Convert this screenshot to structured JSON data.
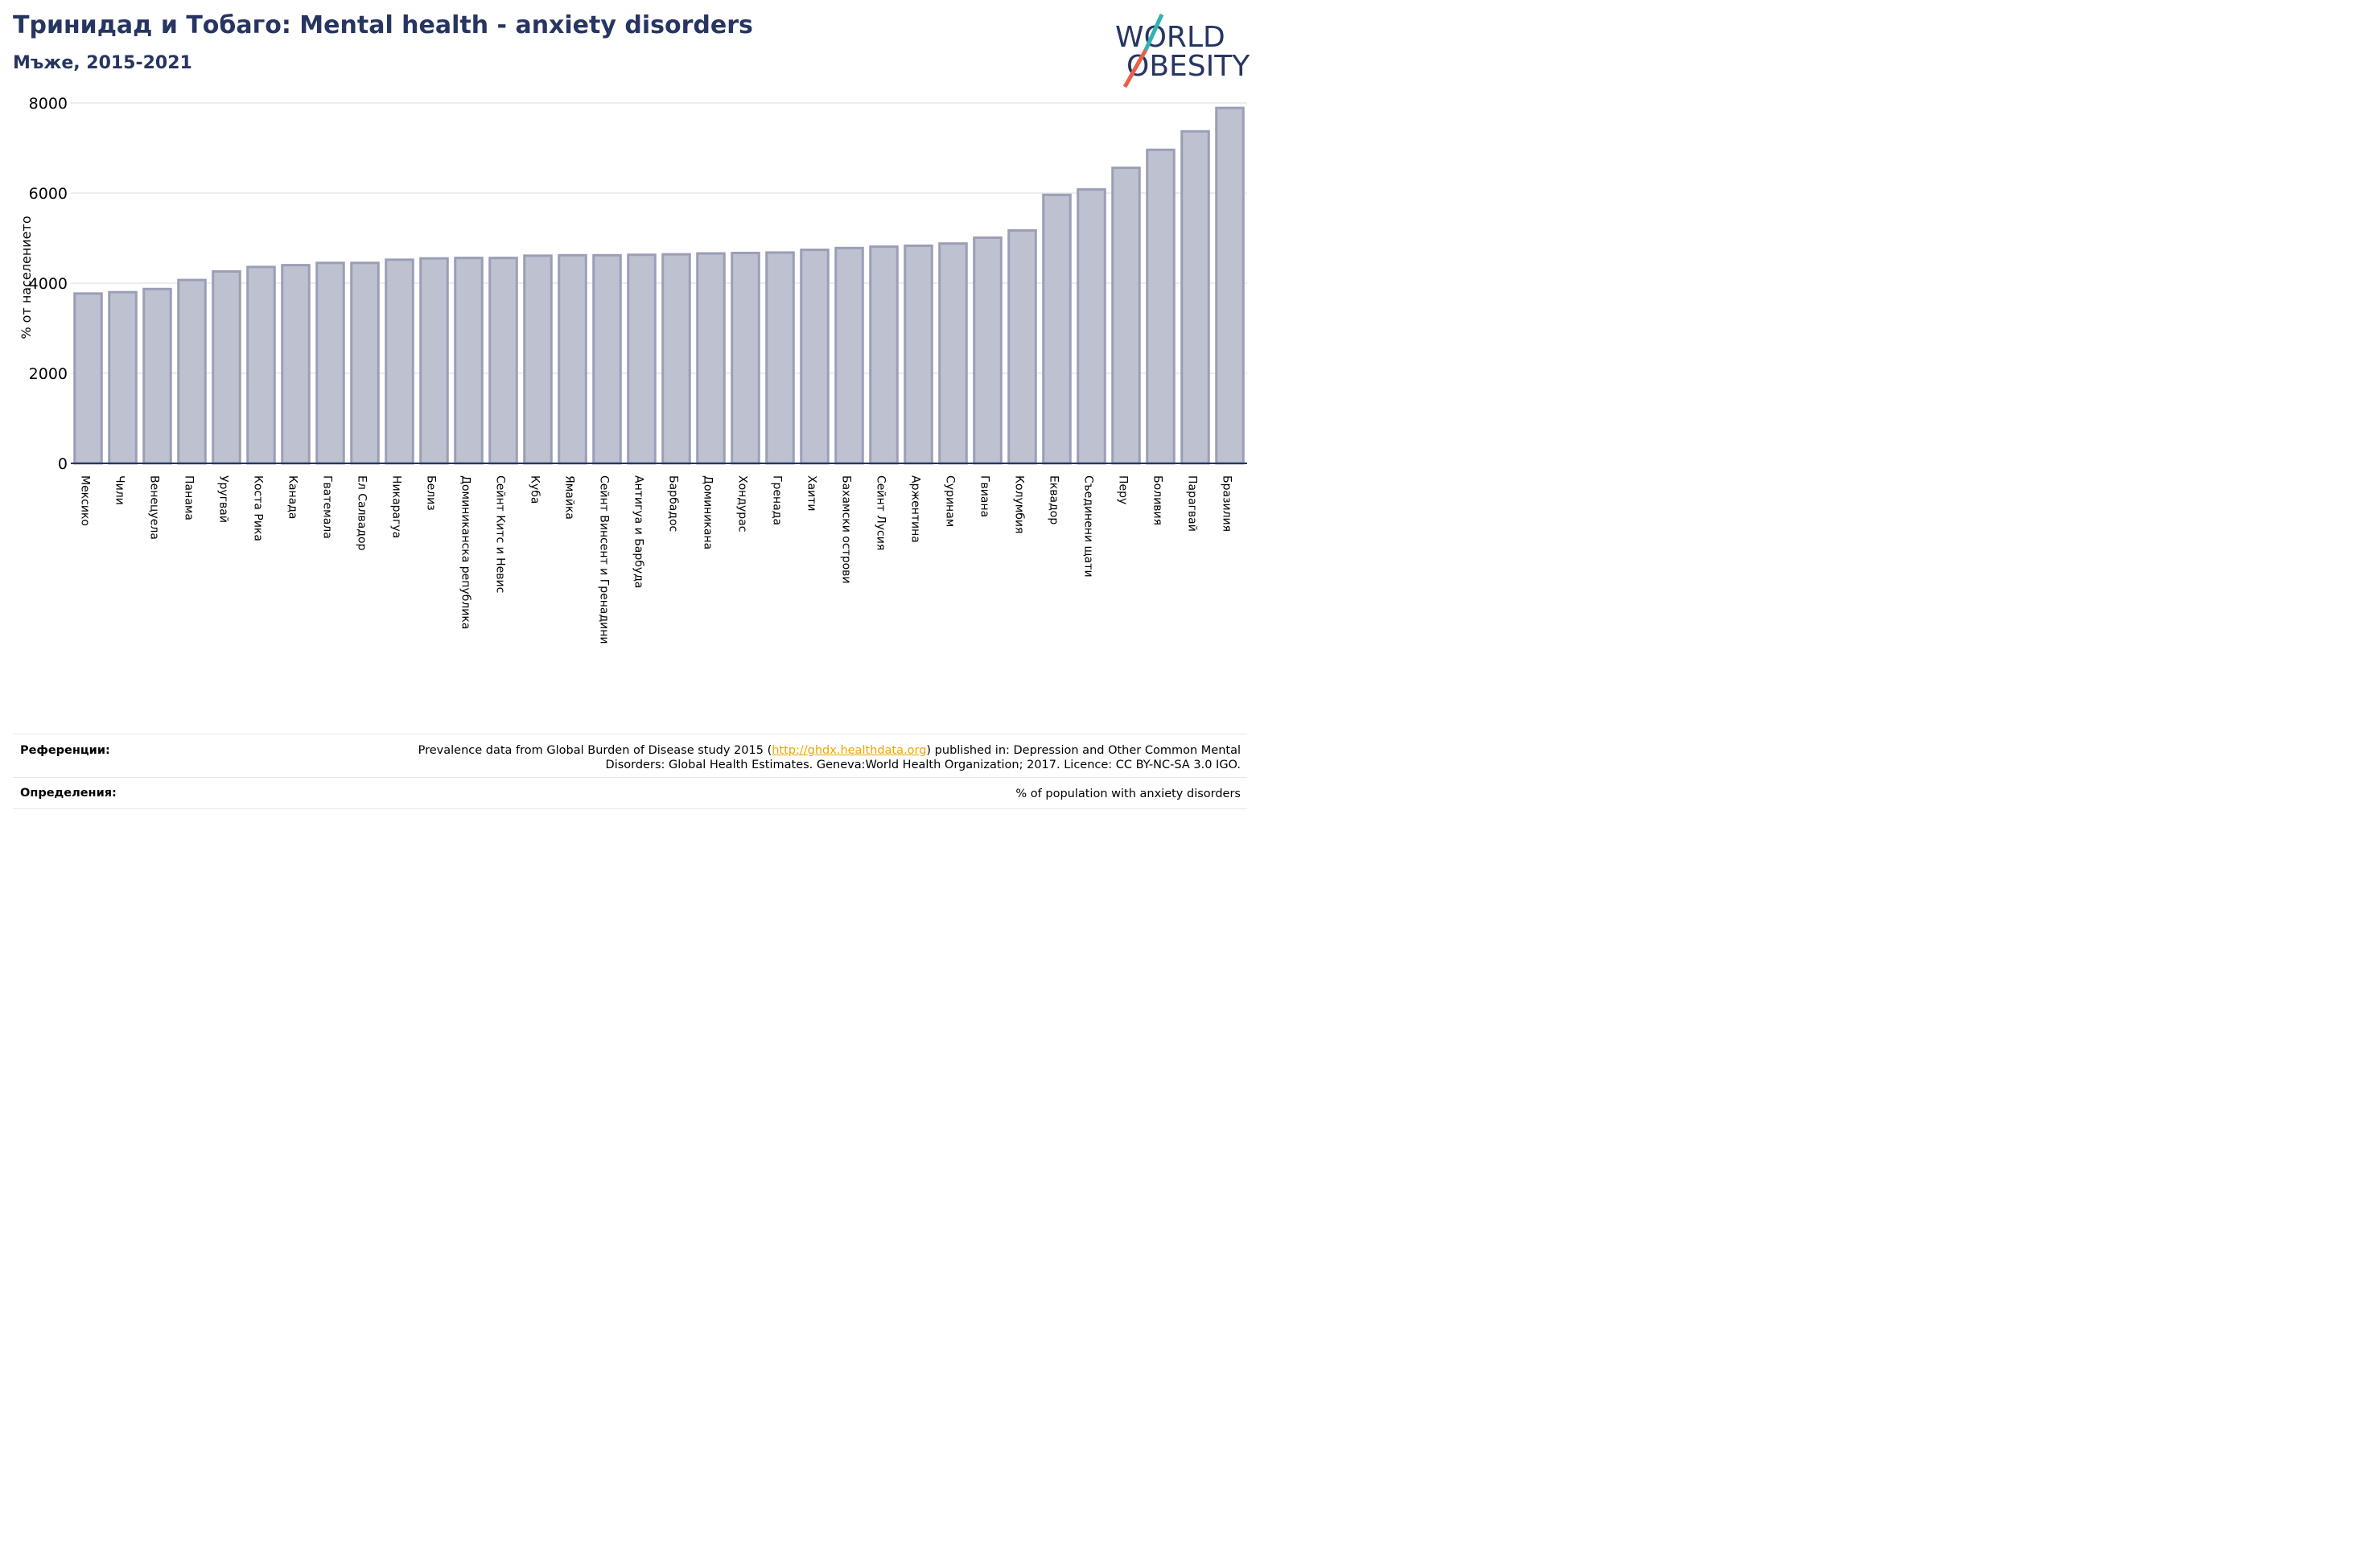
{
  "header": {
    "title": "Тринидад и Тобаго: Mental health - anxiety disorders",
    "subtitle": "Мъже, 2015-2021"
  },
  "logo": {
    "line1": "WORLD",
    "line2": "OBESITY",
    "colors": {
      "text": "#273561",
      "slash_top": "#2fb3b0",
      "slash_bottom": "#e8604c"
    }
  },
  "colors": {
    "title": "#273561",
    "bar_fill": "#bec1cf",
    "bar_stroke": "#9a9fb7",
    "grid": "#e6e7eb",
    "axis": "#273561",
    "link": "#f0a500"
  },
  "chart_data": {
    "type": "bar",
    "title": "Тринидад и Тобаго: Mental health - anxiety disorders",
    "subtitle": "Мъже, 2015-2021",
    "xlabel": "",
    "ylabel": "% от населението",
    "ylim": [
      0,
      8000
    ],
    "yticks": [
      0,
      2000,
      4000,
      6000,
      8000
    ],
    "grid": true,
    "legend": "none",
    "categories": [
      "Мексико",
      "Чили",
      "Венецуела",
      "Панама",
      "Уругвай",
      "Коста Рика",
      "Канада",
      "Гватемала",
      "Ел Салвадор",
      "Никарагуа",
      "Белиз",
      "Доминиканска република",
      "Сейнт Китс и Невис",
      "Куба",
      "Ямайка",
      "Сейнт Винсент и Гренадини",
      "Антигуа и Барбуда",
      "Барбадос",
      "Доминикана",
      "Хондурас",
      "Гренада",
      "Хаити",
      "Бахамски острови",
      "Сейнт Лусия",
      "Аржентина",
      "Суринам",
      "Гвиана",
      "Колумбия",
      "Еквадор",
      "Съединени щати",
      "Перу",
      "Боливия",
      "Парагвай",
      "Бразилия"
    ],
    "values": [
      3770,
      3800,
      3870,
      4070,
      4260,
      4360,
      4400,
      4450,
      4450,
      4520,
      4550,
      4560,
      4560,
      4610,
      4620,
      4620,
      4630,
      4640,
      4660,
      4670,
      4680,
      4740,
      4780,
      4810,
      4830,
      4880,
      5010,
      5170,
      5960,
      6080,
      6560,
      6960,
      7370,
      7890
    ]
  },
  "footer": {
    "references_label": "Референции:",
    "references_text_pre": "Prevalence data from Global Burden of Disease study 2015 (",
    "references_link": "http://ghdx.healthdata.org",
    "references_text_post": ") published in: Depression and Other Common Mental",
    "references_text_line2": "Disorders: Global Health Estimates. Geneva:World Health Organization; 2017. Licence: CC BY-NC-SA 3.0 IGO.",
    "definitions_label": "Определения:",
    "definitions_text": "% of population with anxiety disorders"
  }
}
